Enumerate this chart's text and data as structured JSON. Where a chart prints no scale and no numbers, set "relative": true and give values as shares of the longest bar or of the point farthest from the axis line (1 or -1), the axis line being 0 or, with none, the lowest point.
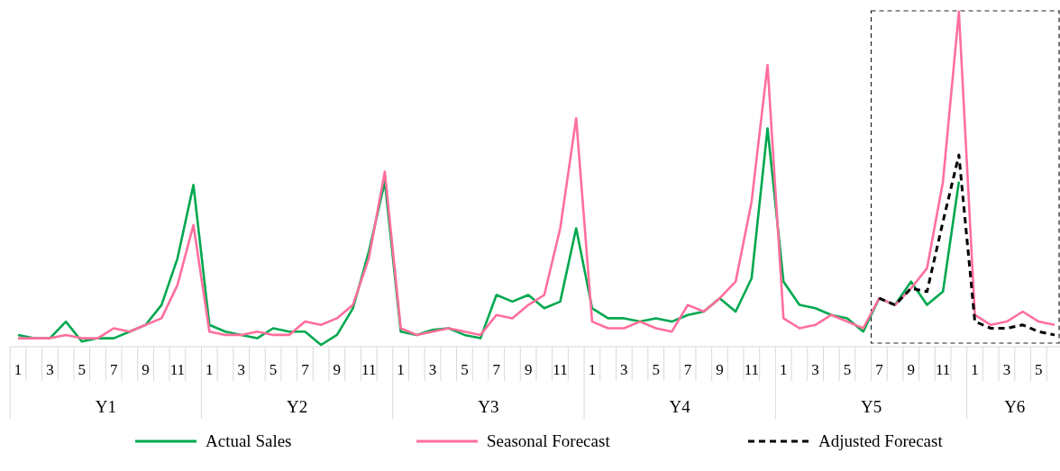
{
  "chart_data": {
    "type": "line",
    "relative": true,
    "legend": "bottom",
    "line_style": "solid",
    "marker": "none",
    "categories": [
      "1",
      null,
      "3",
      null,
      "5",
      null,
      "7",
      null,
      "9",
      null,
      "11",
      null,
      "1",
      null,
      "3",
      null,
      "5",
      null,
      "7",
      null,
      "9",
      null,
      "11",
      null,
      "1",
      null,
      "3",
      null,
      "5",
      null,
      "7",
      null,
      "9",
      null,
      "11",
      null,
      "1",
      null,
      "3",
      null,
      "5",
      null,
      "7",
      null,
      "9",
      null,
      "11",
      null,
      "1",
      null,
      "3",
      null,
      "5",
      null,
      "7",
      null,
      "9",
      null,
      "11",
      null,
      "1",
      null,
      "3",
      null,
      "5",
      null
    ],
    "annotations": [
      "Y1",
      "Y2",
      "Y3",
      "Y4",
      "Y5",
      "Y6"
    ],
    "series": [
      {
        "name": "Actual Sales",
        "color": "#00a84f",
        "values": [
          0.03,
          0.02,
          0.02,
          0.07,
          0.01,
          0.02,
          0.02,
          0.04,
          0.06,
          0.12,
          0.26,
          0.48,
          0.06,
          0.04,
          0.03,
          0.02,
          0.05,
          0.04,
          0.04,
          0.0,
          0.03,
          0.11,
          0.28,
          0.49,
          0.04,
          0.03,
          0.045,
          0.05,
          0.03,
          0.02,
          0.15,
          0.13,
          0.15,
          0.11,
          0.13,
          0.35,
          0.11,
          0.08,
          0.08,
          0.07,
          0.08,
          0.07,
          0.09,
          0.1,
          0.14,
          0.1,
          0.2,
          0.65,
          0.19,
          0.12,
          0.11,
          0.09,
          0.08,
          0.04,
          0.14,
          0.12,
          0.19,
          0.12,
          0.16,
          0.49,
          null,
          null,
          null,
          null,
          null,
          null
        ]
      },
      {
        "name": "Seasonal Forecast",
        "color": "#ff6f9c",
        "values": [
          0.02,
          0.02,
          0.02,
          0.03,
          0.02,
          0.02,
          0.05,
          0.04,
          0.06,
          0.08,
          0.18,
          0.36,
          0.04,
          0.03,
          0.03,
          0.04,
          0.03,
          0.03,
          0.07,
          0.06,
          0.08,
          0.12,
          0.26,
          0.52,
          0.05,
          0.03,
          0.04,
          0.05,
          0.04,
          0.03,
          0.09,
          0.08,
          0.12,
          0.15,
          0.35,
          0.68,
          0.07,
          0.05,
          0.05,
          0.07,
          0.05,
          0.04,
          0.12,
          0.1,
          0.14,
          0.19,
          0.43,
          0.84,
          0.08,
          0.05,
          0.06,
          0.09,
          0.07,
          0.05,
          0.14,
          0.12,
          0.17,
          0.23,
          0.49,
          1,
          0.09,
          0.06,
          0.07,
          0.1,
          0.07,
          0.06
        ]
      },
      {
        "name": "Adjusted Forecast",
        "color": "#000000",
        "line_style": "dashed",
        "values": [
          null,
          null,
          null,
          null,
          null,
          null,
          null,
          null,
          null,
          null,
          null,
          null,
          null,
          null,
          null,
          null,
          null,
          null,
          null,
          null,
          null,
          null,
          null,
          null,
          null,
          null,
          null,
          null,
          null,
          null,
          null,
          null,
          null,
          null,
          null,
          null,
          null,
          null,
          null,
          null,
          null,
          null,
          null,
          null,
          null,
          null,
          null,
          null,
          null,
          null,
          null,
          null,
          null,
          null,
          0.14,
          0.12,
          0.17,
          0.16,
          0.37,
          0.57,
          0.07,
          0.05,
          0.05,
          0.06,
          0.04,
          0.03
        ]
      }
    ]
  }
}
